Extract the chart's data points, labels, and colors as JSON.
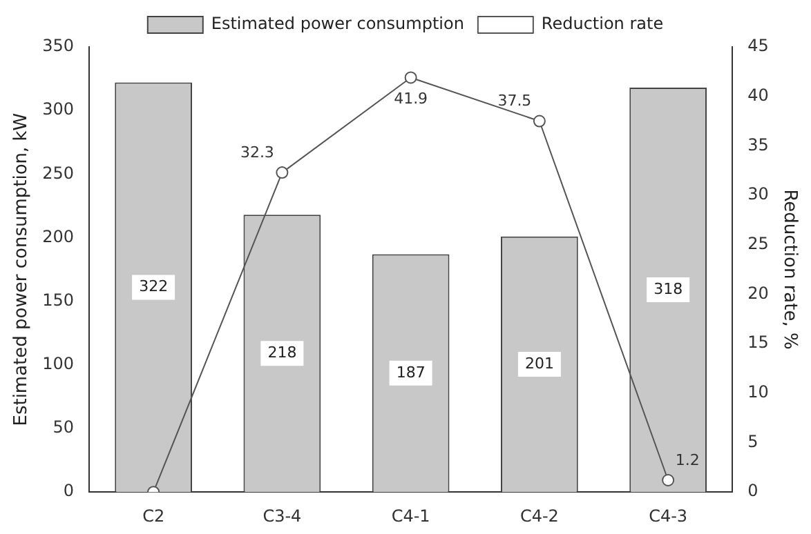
{
  "chart_data": {
    "type": "bar",
    "categories": [
      "C2",
      "C3-4",
      "C4-1",
      "C4-2",
      "C4-3"
    ],
    "ylabel": "Estimated power consumption, kW",
    "y2label": "Reduction rate, %",
    "ylim": [
      0,
      350
    ],
    "yticks": [
      0,
      50,
      100,
      150,
      200,
      250,
      300,
      350
    ],
    "y2lim": [
      0,
      45
    ],
    "y2ticks": [
      0,
      5,
      10,
      15,
      20,
      25,
      30,
      35,
      40,
      45
    ],
    "grid": false,
    "legend": "top",
    "marker": "circle",
    "series": [
      {
        "name": "Estimated power consumption",
        "color": "#c8c8c8",
        "values": [
          322,
          218,
          187,
          201,
          318
        ],
        "value_labels": [
          "322",
          "218",
          "187",
          "201",
          "318"
        ]
      },
      {
        "name": "Reduction rate",
        "type": "line",
        "axis": "y2",
        "color": "#555555",
        "values": [
          0,
          32.3,
          41.9,
          37.5,
          1.2
        ],
        "value_labels": [
          null,
          "32.3",
          "41.9",
          "37.5",
          "1.2"
        ]
      }
    ]
  }
}
